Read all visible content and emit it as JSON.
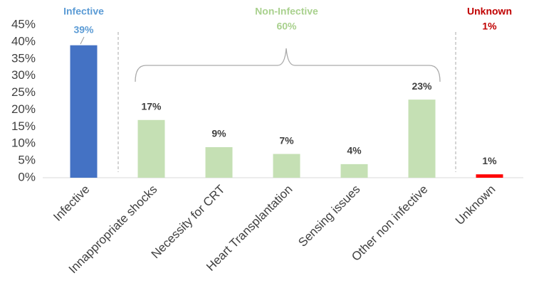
{
  "chart_data": {
    "type": "bar",
    "categories": [
      "Infective",
      "Innappropriate shocks",
      "Necessity for CRT",
      "Heart Transplantation",
      "Sensing issues",
      "Other non infective",
      "Unknown"
    ],
    "values": [
      39,
      17,
      9,
      7,
      4,
      23,
      1
    ],
    "value_labels": [
      "39%",
      "17%",
      "9%",
      "7%",
      "4%",
      "23%",
      "1%"
    ],
    "colors": [
      "#4472c4",
      "#c5e0b4",
      "#c5e0b4",
      "#c5e0b4",
      "#c5e0b4",
      "#c5e0b4",
      "#ff0000"
    ],
    "ylim": [
      0,
      45
    ],
    "yticks": [
      {
        "value": 0,
        "label": "0%"
      },
      {
        "value": 5,
        "label": "5%"
      },
      {
        "value": 10,
        "label": "10%"
      },
      {
        "value": 15,
        "label": "15%"
      },
      {
        "value": 20,
        "label": "20%"
      },
      {
        "value": 25,
        "label": "25%"
      },
      {
        "value": 30,
        "label": "30%"
      },
      {
        "value": 35,
        "label": "35%"
      },
      {
        "value": 40,
        "label": "40%"
      },
      {
        "value": 45,
        "label": "45%"
      }
    ],
    "groups": [
      {
        "name": "Infective",
        "color": "#5b9bd5"
      },
      {
        "name": "Non-Infective",
        "label": "60%",
        "color": "#a9d18e"
      },
      {
        "name": "Unknown",
        "label": "1%",
        "color": "#c00000"
      }
    ]
  }
}
